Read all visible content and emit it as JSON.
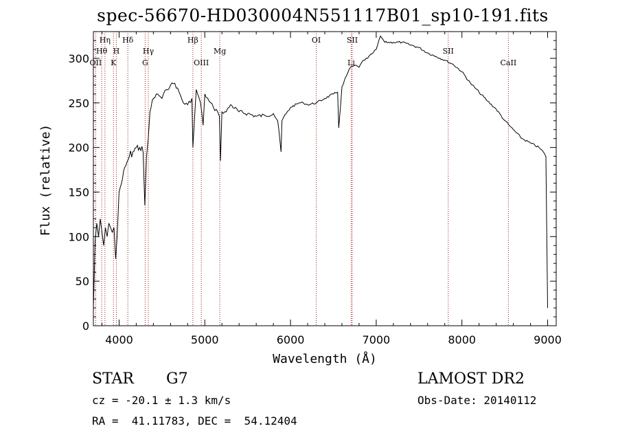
{
  "header": {
    "title": "spec-56670-HD030004N551117B01_sp10-191.fits"
  },
  "info": {
    "class": "STAR",
    "subclass": "G7",
    "survey": "LAMOST DR2",
    "cz": "cz = -20.1 ± 1.3 km/s",
    "obs_date": "Obs-Date: 20140112",
    "radec": "RA =  41.11783, DEC =  54.12404"
  },
  "colors": {
    "line": "#000000",
    "marker": "#a01010"
  },
  "chart_data": {
    "type": "line",
    "title": "spec-56670-HD030004N551117B01_sp10-191.fits",
    "xlabel": "Wavelength (Å)",
    "ylabel": "Flux (relative)",
    "xlim": [
      3700,
      9100
    ],
    "ylim": [
      0,
      330
    ],
    "xticks": [
      4000,
      5000,
      6000,
      7000,
      8000,
      9000
    ],
    "yticks": [
      0,
      50,
      100,
      150,
      200,
      250,
      300
    ],
    "grid": false,
    "series": [
      {
        "x": [
          3700,
          3720,
          3740,
          3760,
          3780,
          3800,
          3820,
          3840,
          3860,
          3880,
          3900,
          3920,
          3940,
          3960,
          3980,
          4000,
          4040,
          4080,
          4120,
          4160,
          4200,
          4240,
          4280,
          4300,
          4320,
          4340,
          4360,
          4400,
          4450,
          4500,
          4550,
          4600,
          4650,
          4700,
          4750,
          4800,
          4850,
          4861,
          4900,
          4950,
          4980,
          5000,
          5050,
          5100,
          5150,
          5170,
          5183,
          5200,
          5250,
          5300,
          5400,
          5500,
          5600,
          5700,
          5800,
          5850,
          5890,
          5900,
          5950,
          6000,
          6100,
          6150,
          6200,
          6300,
          6400,
          6500,
          6550,
          6563,
          6600,
          6650,
          6700,
          6750,
          6800,
          6850,
          6900,
          6950,
          7000,
          7050,
          7100,
          7200,
          7300,
          7400,
          7500,
          7600,
          7700,
          7800,
          7900,
          8000,
          8100,
          8200,
          8300,
          8400,
          8500,
          8550,
          8600,
          8700,
          8800,
          8900,
          8950,
          8980,
          9000
        ],
        "y": [
          20,
          95,
          115,
          100,
          120,
          105,
          90,
          110,
          100,
          115,
          110,
          105,
          110,
          75,
          105,
          150,
          165,
          180,
          190,
          195,
          200,
          200,
          195,
          135,
          190,
          210,
          240,
          255,
          260,
          255,
          265,
          270,
          272,
          262,
          250,
          248,
          255,
          200,
          265,
          250,
          225,
          260,
          252,
          245,
          240,
          235,
          185,
          240,
          240,
          248,
          240,
          238,
          235,
          236,
          238,
          230,
          195,
          230,
          238,
          245,
          250,
          250,
          248,
          250,
          255,
          260,
          262,
          222,
          268,
          280,
          290,
          292,
          290,
          298,
          300,
          305,
          310,
          325,
          318,
          318,
          318,
          315,
          312,
          306,
          302,
          298,
          293,
          285,
          272,
          262,
          252,
          243,
          230,
          225,
          220,
          210,
          205,
          200,
          195,
          190,
          20
        ]
      }
    ],
    "lines": [
      {
        "label": "Hη",
        "wavelength": 3835,
        "row": 1
      },
      {
        "label": "Hθ",
        "wavelength": 3797,
        "row": 2
      },
      {
        "label": "OII",
        "wavelength": 3727,
        "row": 3
      },
      {
        "label": "H",
        "wavelength": 3968,
        "row": 2
      },
      {
        "label": "K",
        "wavelength": 3934,
        "row": 3
      },
      {
        "label": "Hδ",
        "wavelength": 4102,
        "row": 1
      },
      {
        "label": "Hγ",
        "wavelength": 4341,
        "row": 2
      },
      {
        "label": "G",
        "wavelength": 4304,
        "row": 3
      },
      {
        "label": "Hβ",
        "wavelength": 4861,
        "row": 1
      },
      {
        "label": "OIII",
        "wavelength": 4959,
        "row": 3
      },
      {
        "label": "Mg",
        "wavelength": 5175,
        "row": 2
      },
      {
        "label": "OI",
        "wavelength": 6300,
        "row": 1
      },
      {
        "label": "SII",
        "wavelength": 6720,
        "row": 1
      },
      {
        "label": "Li",
        "wavelength": 6708,
        "row": 3
      },
      {
        "label": "SII",
        "wavelength": 7840,
        "row": 2
      },
      {
        "label": "CaII",
        "wavelength": 8542,
        "row": 3
      }
    ]
  }
}
